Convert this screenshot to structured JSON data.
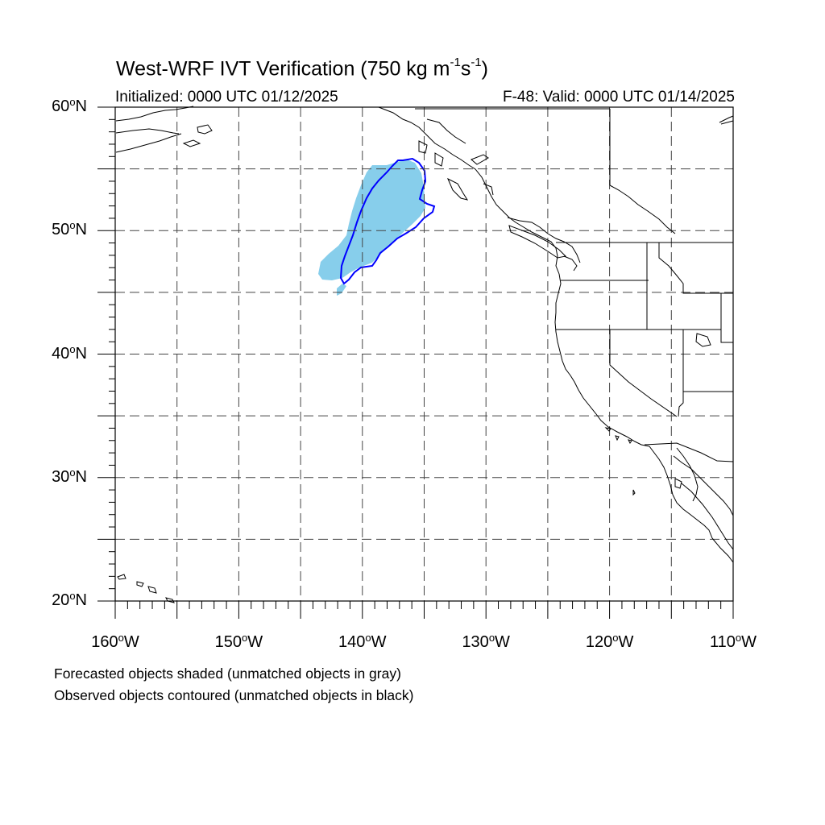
{
  "title": {
    "prefix": "West-WRF IVT Verification (750 kg m",
    "exp1": "-1",
    "mid": "s",
    "exp2": "-1",
    "suffix": ")"
  },
  "subtitle_left": "Initialized: 0000 UTC 01/12/2025",
  "subtitle_right": "F-48: Valid: 0000 UTC 01/14/2025",
  "degree_symbol": "o",
  "lat_labels": [
    {
      "num": "60",
      "hemi": "N"
    },
    {
      "num": "50",
      "hemi": "N"
    },
    {
      "num": "40",
      "hemi": "N"
    },
    {
      "num": "30",
      "hemi": "N"
    },
    {
      "num": "20",
      "hemi": "N"
    }
  ],
  "lon_labels": [
    {
      "num": "160",
      "hemi": "W"
    },
    {
      "num": "150",
      "hemi": "W"
    },
    {
      "num": "140",
      "hemi": "W"
    },
    {
      "num": "130",
      "hemi": "W"
    },
    {
      "num": "120",
      "hemi": "W"
    },
    {
      "num": "110",
      "hemi": "W"
    }
  ],
  "footnotes": [
    "Forecasted objects shaded (unmatched objects in gray)",
    "Observed objects contoured (unmatched objects in black)"
  ],
  "colors": {
    "forecast_fill": "#87ceeb",
    "observed_contour": "#0000ff",
    "coastline": "#000000",
    "grid": "#000000"
  }
}
